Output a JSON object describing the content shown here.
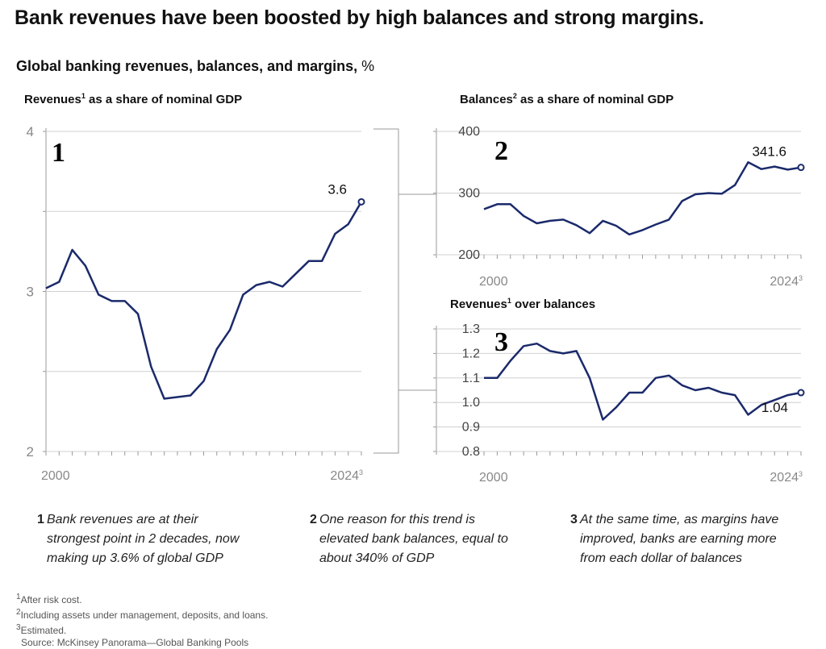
{
  "title": "Bank revenues have been boosted by high balances and strong margins.",
  "subtitle": "Global banking revenues, balances, and margins,",
  "subtitle_unit": "%",
  "colors": {
    "line": "#1b2a6b",
    "grid": "#d0d0d0",
    "axis": "#999999",
    "tick": "#888888",
    "text": "#111111"
  },
  "chart_data": [
    {
      "type": "line",
      "panel": "1",
      "title": "Revenues",
      "title_sup": "1",
      "title_rest": " as a share of nominal GDP",
      "x": [
        2000,
        2001,
        2002,
        2003,
        2004,
        2005,
        2006,
        2007,
        2008,
        2009,
        2010,
        2011,
        2012,
        2013,
        2014,
        2015,
        2016,
        2017,
        2018,
        2019,
        2020,
        2021,
        2022,
        2023,
        2024
      ],
      "values": [
        3.02,
        3.06,
        3.26,
        3.16,
        2.98,
        2.94,
        2.94,
        2.86,
        2.53,
        2.33,
        2.34,
        2.35,
        2.44,
        2.64,
        2.76,
        2.98,
        3.04,
        3.06,
        3.03,
        3.11,
        3.19,
        3.19,
        3.36,
        3.42,
        3.56
      ],
      "yticks": [
        "2",
        "3",
        "4"
      ],
      "ylim": [
        2,
        4
      ],
      "xtick_start": "2000",
      "xtick_end": "2024",
      "xtick_end_sup": "3",
      "end_label": "3.6",
      "grid": true
    },
    {
      "type": "line",
      "panel": "2",
      "title": "Balances",
      "title_sup": "2",
      "title_rest": " as a share of nominal GDP",
      "x": [
        2000,
        2001,
        2002,
        2003,
        2004,
        2005,
        2006,
        2007,
        2008,
        2009,
        2010,
        2011,
        2012,
        2013,
        2014,
        2015,
        2016,
        2017,
        2018,
        2019,
        2020,
        2021,
        2022,
        2023,
        2024
      ],
      "values": [
        274,
        282,
        282,
        263,
        251,
        255,
        257,
        248,
        235,
        255,
        247,
        233,
        240,
        249,
        257,
        287,
        298,
        300,
        299,
        313,
        350,
        339,
        343,
        338,
        341.6
      ],
      "yticks": [
        "200",
        "300",
        "400"
      ],
      "ylim": [
        200,
        400
      ],
      "xtick_start": "2000",
      "xtick_end": "2024",
      "xtick_end_sup": "3",
      "end_label": "341.6",
      "grid": true
    },
    {
      "type": "line",
      "panel": "3",
      "title": "Revenues",
      "title_sup": "1",
      "title_rest": " over balances",
      "x": [
        2000,
        2001,
        2002,
        2003,
        2004,
        2005,
        2006,
        2007,
        2008,
        2009,
        2010,
        2011,
        2012,
        2013,
        2014,
        2015,
        2016,
        2017,
        2018,
        2019,
        2020,
        2021,
        2022,
        2023,
        2024
      ],
      "values": [
        1.1,
        1.1,
        1.17,
        1.23,
        1.24,
        1.21,
        1.2,
        1.21,
        1.1,
        0.93,
        0.98,
        1.04,
        1.04,
        1.1,
        1.11,
        1.07,
        1.05,
        1.06,
        1.04,
        1.03,
        0.95,
        0.99,
        1.01,
        1.03,
        1.04
      ],
      "yticks": [
        "0.8",
        "0.9",
        "1.0",
        "1.1",
        "1.2",
        "1.3"
      ],
      "ylim": [
        0.8,
        1.3
      ],
      "xtick_start": "2000",
      "xtick_end": "2024",
      "xtick_end_sup": "3",
      "end_label": "1.04",
      "grid": true
    }
  ],
  "notes": [
    {
      "num": "1",
      "lines": [
        "Bank revenues are at their",
        "strongest point in 2 decades, now",
        "making up 3.6% of global GDP"
      ]
    },
    {
      "num": "2",
      "lines": [
        "One reason for this trend is",
        "elevated bank balances, equal to",
        "about 340% of GDP"
      ]
    },
    {
      "num": "3",
      "lines": [
        "At the same time, as margins have",
        "improved, banks are earning more",
        "from each dollar of balances"
      ]
    }
  ],
  "footnotes": [
    {
      "sup": "1",
      "text": "After risk cost."
    },
    {
      "sup": "2",
      "text": "Including assets under management, deposits, and loans."
    },
    {
      "sup": "3",
      "text": "Estimated."
    },
    {
      "sup": "",
      "text": "Source: McKinsey Panorama—Global Banking Pools"
    }
  ]
}
